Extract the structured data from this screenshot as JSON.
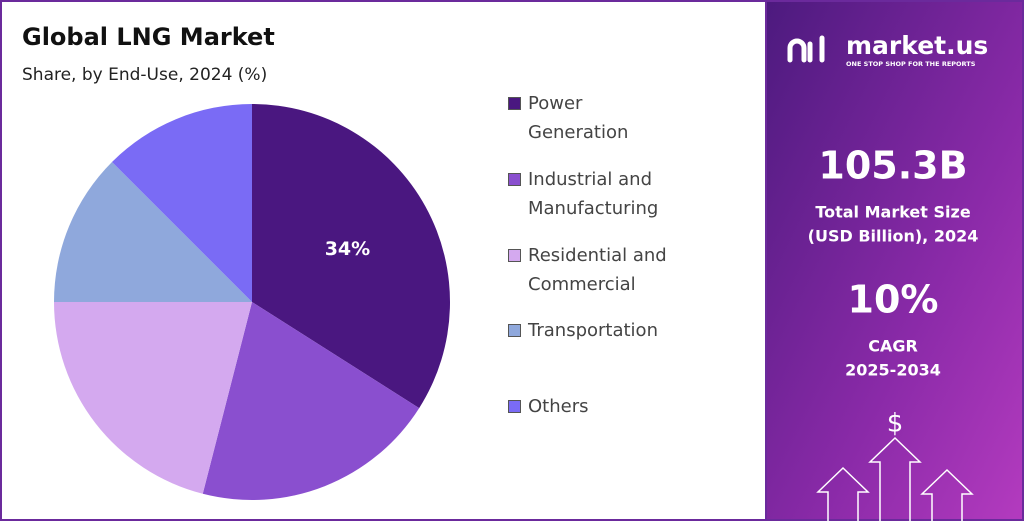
{
  "chart_data": {
    "type": "pie",
    "title": "Global LNG Market",
    "subtitle": "Share, by End-Use, 2024 (%)",
    "categories": [
      "Power Generation",
      "Industrial and Manufacturing",
      "Residential and Commercial",
      "Transportation",
      "Others"
    ],
    "values": [
      34,
      20,
      21,
      12.5,
      12.5
    ],
    "value_labels": [
      "34%",
      null,
      null,
      null,
      null
    ],
    "colors": [
      "#4a1780",
      "#8a4fcf",
      "#d4a9ef",
      "#8fa8dc",
      "#7a6bf5"
    ]
  },
  "panel": {
    "brand": "market.us",
    "tagline": "ONE STOP SHOP FOR THE REPORTS",
    "market_size": "105.3B",
    "market_size_label": [
      "Total Market Size",
      "(USD Billion), 2024"
    ],
    "cagr": "10%",
    "cagr_label": [
      "CAGR",
      "2025-2034"
    ],
    "icon_symbol": "$"
  }
}
